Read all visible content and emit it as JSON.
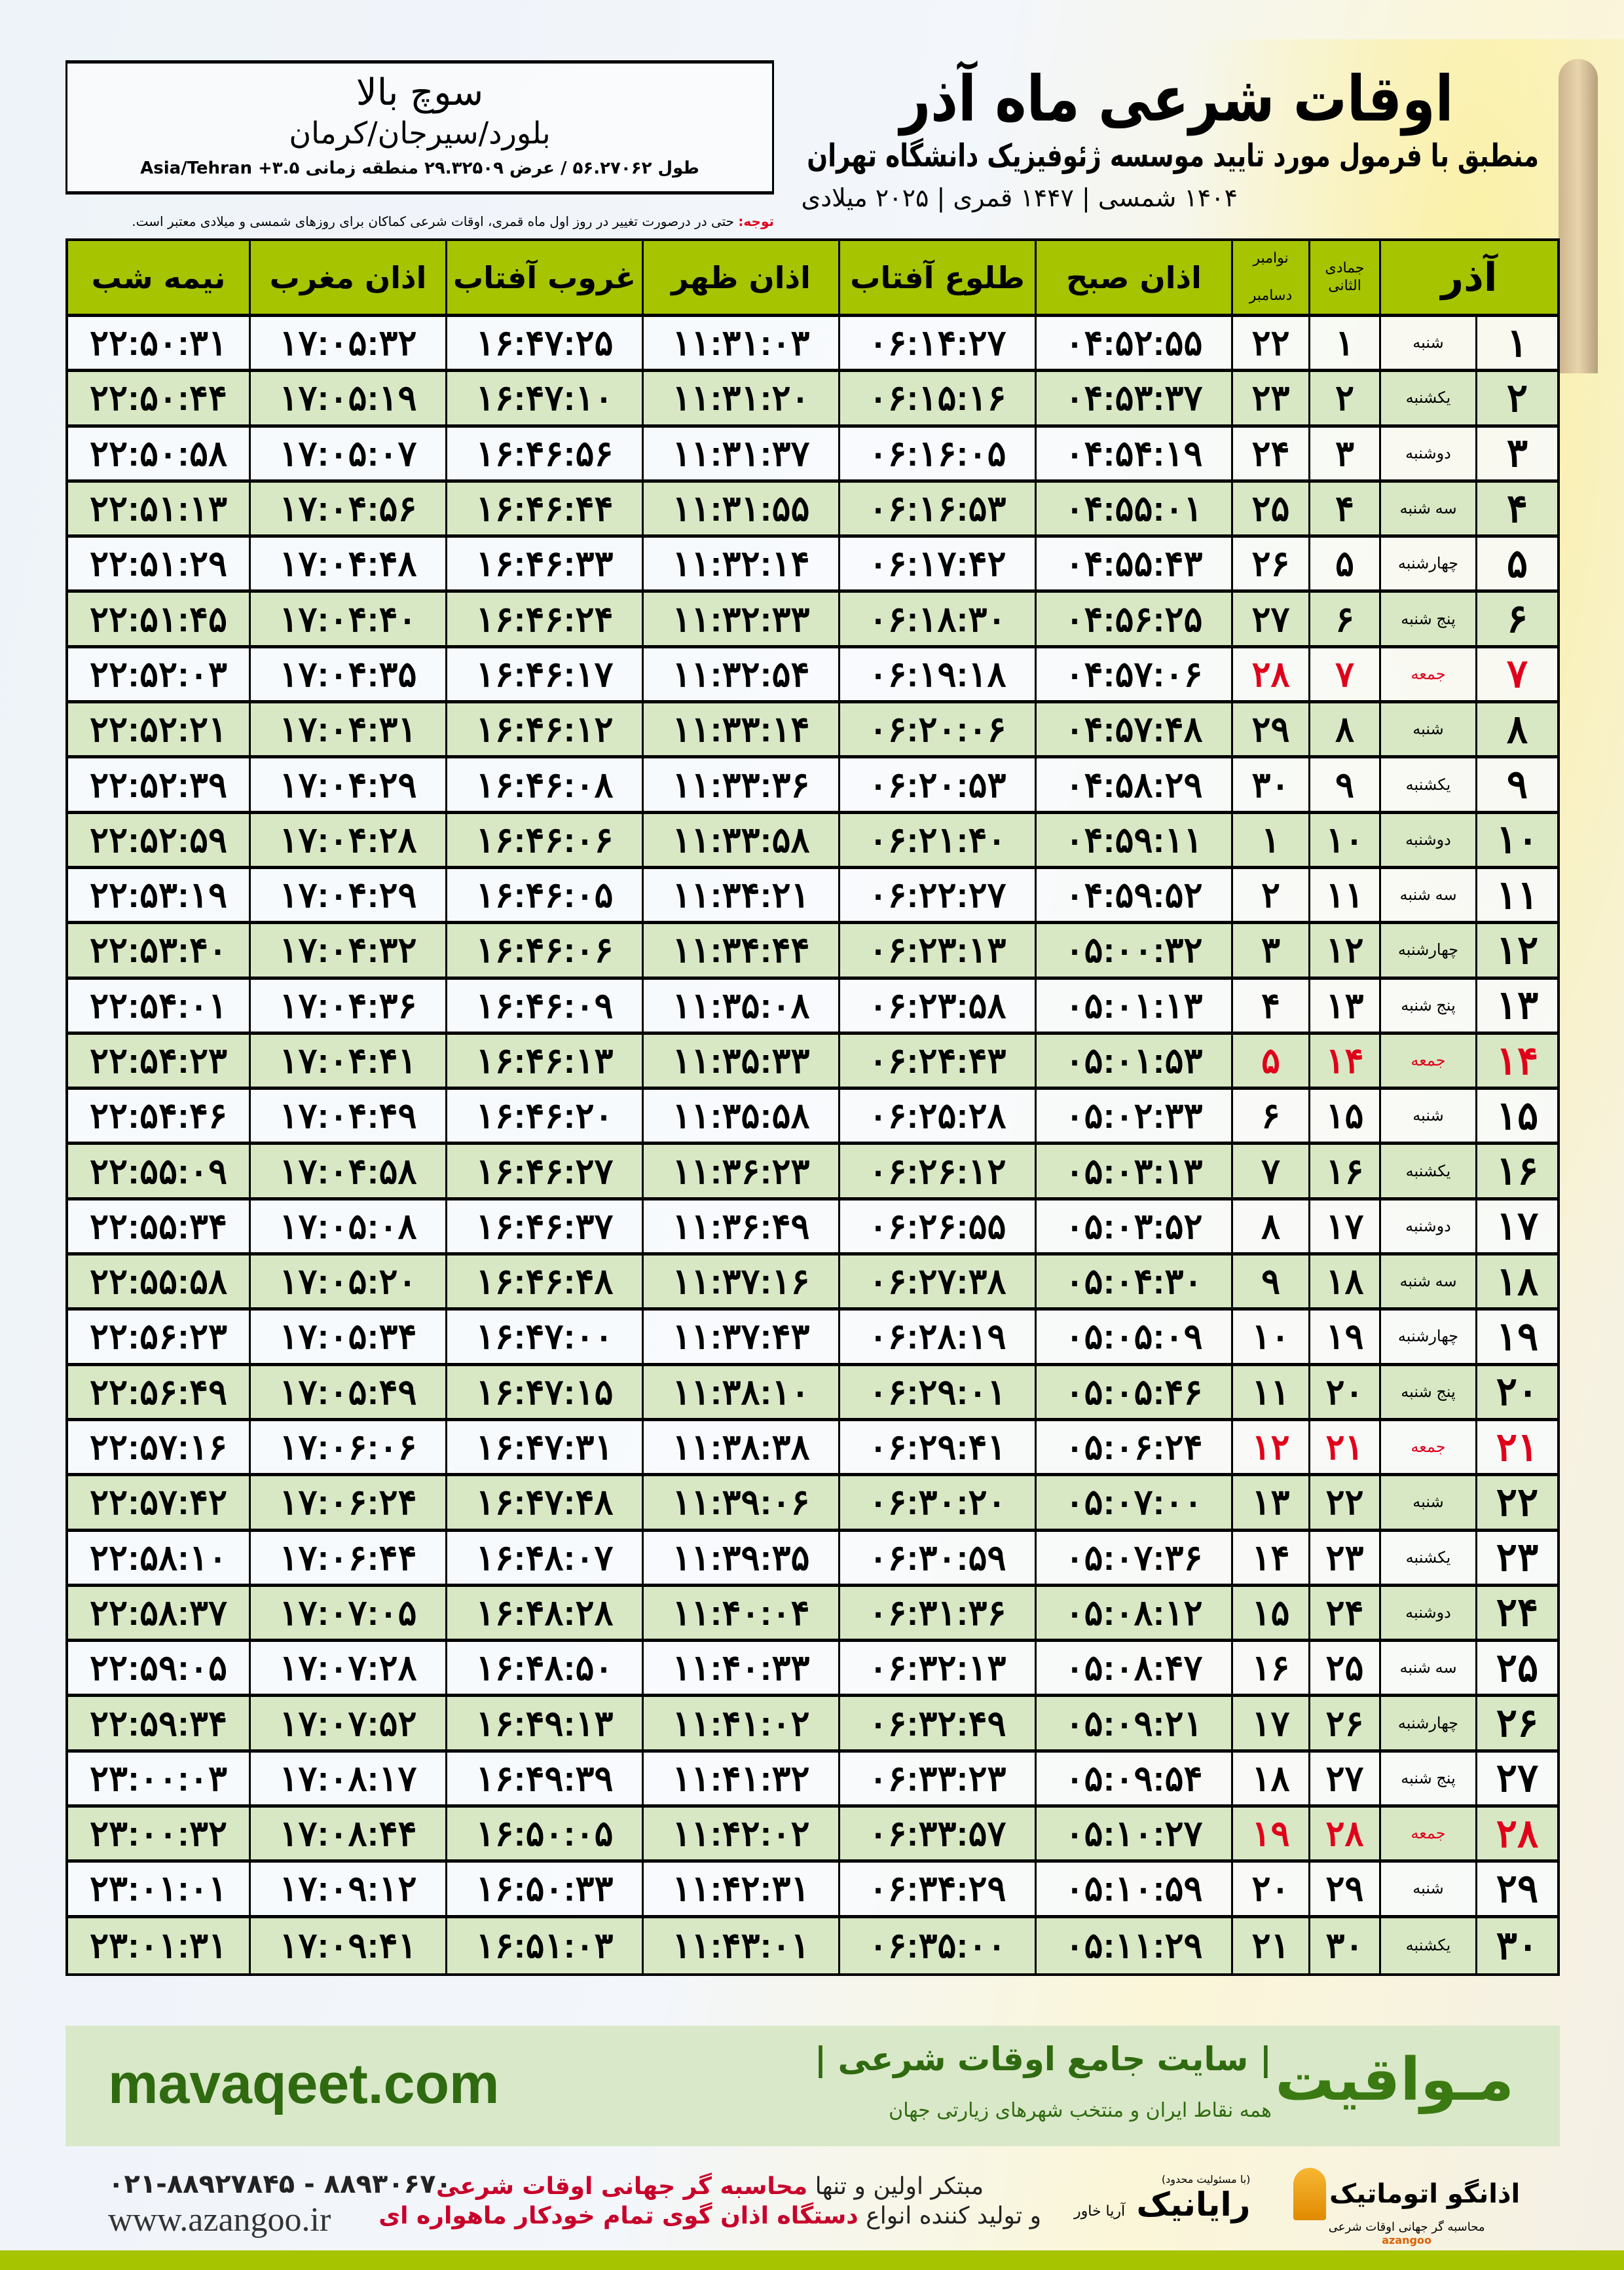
{
  "header": {
    "title": "اوقات شرعی ماه آذر",
    "subtitle": "منطبق با فرمول مورد تایید موسسه ژئوفیزیک دانشگاه تهران",
    "years": "۱۴۰۴ شمسی | ۱۴۴۷ قمری | ۲۰۲۵ میلادی"
  },
  "location": {
    "city": "سوچ بالا",
    "region": "بلورد/سیرجان/کرمان",
    "coords": "طول ۵۶.۲۷۰۶۲ / عرض ۲۹.۳۲۵۰۹ منطقه زمانی ۳.۵+ Asia/Tehran"
  },
  "note": {
    "label": "توجه:",
    "text": " حتی در درصورت تغییر در روز اول ماه قمری، اوقات شرعی کماکان برای روزهای شمسی و میلادی معتبر است."
  },
  "table": {
    "headers": {
      "day": "آذر",
      "hijri": "جمادی الثانی",
      "greg_top": "نوامبر",
      "greg_bottom": "دسامبر",
      "fajr": "اذان صبح",
      "sunrise": "طلوع آفتاب",
      "dhuhr": "اذان ظهر",
      "sunset": "غروب آفتاب",
      "maghrib": "اذان مغرب",
      "midnight": "نیمه شب"
    },
    "holiday_color": "#e0001a",
    "header_color": "#a6c400",
    "alt_row_color": "#d9e8c4",
    "rows": [
      [
        "۱",
        "شنبه",
        "۱",
        "۲۲",
        "۰۴:۵۲:۵۵",
        "۰۶:۱۴:۲۷",
        "۱۱:۳۱:۰۳",
        "۱۶:۴۷:۲۵",
        "۱۷:۰۵:۳۲",
        "۲۲:۵۰:۳۱",
        false
      ],
      [
        "۲",
        "یکشنبه",
        "۲",
        "۲۳",
        "۰۴:۵۳:۳۷",
        "۰۶:۱۵:۱۶",
        "۱۱:۳۱:۲۰",
        "۱۶:۴۷:۱۰",
        "۱۷:۰۵:۱۹",
        "۲۲:۵۰:۴۴",
        false
      ],
      [
        "۳",
        "دوشنبه",
        "۳",
        "۲۴",
        "۰۴:۵۴:۱۹",
        "۰۶:۱۶:۰۵",
        "۱۱:۳۱:۳۷",
        "۱۶:۴۶:۵۶",
        "۱۷:۰۵:۰۷",
        "۲۲:۵۰:۵۸",
        false
      ],
      [
        "۴",
        "سه شنبه",
        "۴",
        "۲۵",
        "۰۴:۵۵:۰۱",
        "۰۶:۱۶:۵۳",
        "۱۱:۳۱:۵۵",
        "۱۶:۴۶:۴۴",
        "۱۷:۰۴:۵۶",
        "۲۲:۵۱:۱۳",
        false
      ],
      [
        "۵",
        "چهارشنبه",
        "۵",
        "۲۶",
        "۰۴:۵۵:۴۳",
        "۰۶:۱۷:۴۲",
        "۱۱:۳۲:۱۴",
        "۱۶:۴۶:۳۳",
        "۱۷:۰۴:۴۸",
        "۲۲:۵۱:۲۹",
        false
      ],
      [
        "۶",
        "پنج شنبه",
        "۶",
        "۲۷",
        "۰۴:۵۶:۲۵",
        "۰۶:۱۸:۳۰",
        "۱۱:۳۲:۳۳",
        "۱۶:۴۶:۲۴",
        "۱۷:۰۴:۴۰",
        "۲۲:۵۱:۴۵",
        false
      ],
      [
        "۷",
        "جمعه",
        "۷",
        "۲۸",
        "۰۴:۵۷:۰۶",
        "۰۶:۱۹:۱۸",
        "۱۱:۳۲:۵۴",
        "۱۶:۴۶:۱۷",
        "۱۷:۰۴:۳۵",
        "۲۲:۵۲:۰۳",
        true
      ],
      [
        "۸",
        "شنبه",
        "۸",
        "۲۹",
        "۰۴:۵۷:۴۸",
        "۰۶:۲۰:۰۶",
        "۱۱:۳۳:۱۴",
        "۱۶:۴۶:۱۲",
        "۱۷:۰۴:۳۱",
        "۲۲:۵۲:۲۱",
        false
      ],
      [
        "۹",
        "یکشنبه",
        "۹",
        "۳۰",
        "۰۴:۵۸:۲۹",
        "۰۶:۲۰:۵۳",
        "۱۱:۳۳:۳۶",
        "۱۶:۴۶:۰۸",
        "۱۷:۰۴:۲۹",
        "۲۲:۵۲:۳۹",
        false
      ],
      [
        "۱۰",
        "دوشنبه",
        "۱۰",
        "۱",
        "۰۴:۵۹:۱۱",
        "۰۶:۲۱:۴۰",
        "۱۱:۳۳:۵۸",
        "۱۶:۴۶:۰۶",
        "۱۷:۰۴:۲۸",
        "۲۲:۵۲:۵۹",
        false
      ],
      [
        "۱۱",
        "سه شنبه",
        "۱۱",
        "۲",
        "۰۴:۵۹:۵۲",
        "۰۶:۲۲:۲۷",
        "۱۱:۳۴:۲۱",
        "۱۶:۴۶:۰۵",
        "۱۷:۰۴:۲۹",
        "۲۲:۵۳:۱۹",
        false
      ],
      [
        "۱۲",
        "چهارشنبه",
        "۱۲",
        "۳",
        "۰۵:۰۰:۳۲",
        "۰۶:۲۳:۱۳",
        "۱۱:۳۴:۴۴",
        "۱۶:۴۶:۰۶",
        "۱۷:۰۴:۳۲",
        "۲۲:۵۳:۴۰",
        false
      ],
      [
        "۱۳",
        "پنج شنبه",
        "۱۳",
        "۴",
        "۰۵:۰۱:۱۳",
        "۰۶:۲۳:۵۸",
        "۱۱:۳۵:۰۸",
        "۱۶:۴۶:۰۹",
        "۱۷:۰۴:۳۶",
        "۲۲:۵۴:۰۱",
        false
      ],
      [
        "۱۴",
        "جمعه",
        "۱۴",
        "۵",
        "۰۵:۰۱:۵۳",
        "۰۶:۲۴:۴۳",
        "۱۱:۳۵:۳۳",
        "۱۶:۴۶:۱۳",
        "۱۷:۰۴:۴۱",
        "۲۲:۵۴:۲۳",
        true
      ],
      [
        "۱۵",
        "شنبه",
        "۱۵",
        "۶",
        "۰۵:۰۲:۳۳",
        "۰۶:۲۵:۲۸",
        "۱۱:۳۵:۵۸",
        "۱۶:۴۶:۲۰",
        "۱۷:۰۴:۴۹",
        "۲۲:۵۴:۴۶",
        false
      ],
      [
        "۱۶",
        "یکشنبه",
        "۱۶",
        "۷",
        "۰۵:۰۳:۱۳",
        "۰۶:۲۶:۱۲",
        "۱۱:۳۶:۲۳",
        "۱۶:۴۶:۲۷",
        "۱۷:۰۴:۵۸",
        "۲۲:۵۵:۰۹",
        false
      ],
      [
        "۱۷",
        "دوشنبه",
        "۱۷",
        "۸",
        "۰۵:۰۳:۵۲",
        "۰۶:۲۶:۵۵",
        "۱۱:۳۶:۴۹",
        "۱۶:۴۶:۳۷",
        "۱۷:۰۵:۰۸",
        "۲۲:۵۵:۳۴",
        false
      ],
      [
        "۱۸",
        "سه شنبه",
        "۱۸",
        "۹",
        "۰۵:۰۴:۳۰",
        "۰۶:۲۷:۳۸",
        "۱۱:۳۷:۱۶",
        "۱۶:۴۶:۴۸",
        "۱۷:۰۵:۲۰",
        "۲۲:۵۵:۵۸",
        false
      ],
      [
        "۱۹",
        "چهارشنبه",
        "۱۹",
        "۱۰",
        "۰۵:۰۵:۰۹",
        "۰۶:۲۸:۱۹",
        "۱۱:۳۷:۴۳",
        "۱۶:۴۷:۰۰",
        "۱۷:۰۵:۳۴",
        "۲۲:۵۶:۲۳",
        false
      ],
      [
        "۲۰",
        "پنج شنبه",
        "۲۰",
        "۱۱",
        "۰۵:۰۵:۴۶",
        "۰۶:۲۹:۰۱",
        "۱۱:۳۸:۱۰",
        "۱۶:۴۷:۱۵",
        "۱۷:۰۵:۴۹",
        "۲۲:۵۶:۴۹",
        false
      ],
      [
        "۲۱",
        "جمعه",
        "۲۱",
        "۱۲",
        "۰۵:۰۶:۲۴",
        "۰۶:۲۹:۴۱",
        "۱۱:۳۸:۳۸",
        "۱۶:۴۷:۳۱",
        "۱۷:۰۶:۰۶",
        "۲۲:۵۷:۱۶",
        true
      ],
      [
        "۲۲",
        "شنبه",
        "۲۲",
        "۱۳",
        "۰۵:۰۷:۰۰",
        "۰۶:۳۰:۲۰",
        "۱۱:۳۹:۰۶",
        "۱۶:۴۷:۴۸",
        "۱۷:۰۶:۲۴",
        "۲۲:۵۷:۴۲",
        false
      ],
      [
        "۲۳",
        "یکشنبه",
        "۲۳",
        "۱۴",
        "۰۵:۰۷:۳۶",
        "۰۶:۳۰:۵۹",
        "۱۱:۳۹:۳۵",
        "۱۶:۴۸:۰۷",
        "۱۷:۰۶:۴۴",
        "۲۲:۵۸:۱۰",
        false
      ],
      [
        "۲۴",
        "دوشنبه",
        "۲۴",
        "۱۵",
        "۰۵:۰۸:۱۲",
        "۰۶:۳۱:۳۶",
        "۱۱:۴۰:۰۴",
        "۱۶:۴۸:۲۸",
        "۱۷:۰۷:۰۵",
        "۲۲:۵۸:۳۷",
        false
      ],
      [
        "۲۵",
        "سه شنبه",
        "۲۵",
        "۱۶",
        "۰۵:۰۸:۴۷",
        "۰۶:۳۲:۱۳",
        "۱۱:۴۰:۳۳",
        "۱۶:۴۸:۵۰",
        "۱۷:۰۷:۲۸",
        "۲۲:۵۹:۰۵",
        false
      ],
      [
        "۲۶",
        "چهارشنبه",
        "۲۶",
        "۱۷",
        "۰۵:۰۹:۲۱",
        "۰۶:۳۲:۴۹",
        "۱۱:۴۱:۰۲",
        "۱۶:۴۹:۱۳",
        "۱۷:۰۷:۵۲",
        "۲۲:۵۹:۳۴",
        false
      ],
      [
        "۲۷",
        "پنج شنبه",
        "۲۷",
        "۱۸",
        "۰۵:۰۹:۵۴",
        "۰۶:۳۳:۲۳",
        "۱۱:۴۱:۳۲",
        "۱۶:۴۹:۳۹",
        "۱۷:۰۸:۱۷",
        "۲۳:۰۰:۰۳",
        false
      ],
      [
        "۲۸",
        "جمعه",
        "۲۸",
        "۱۹",
        "۰۵:۱۰:۲۷",
        "۰۶:۳۳:۵۷",
        "۱۱:۴۲:۰۲",
        "۱۶:۵۰:۰۵",
        "۱۷:۰۸:۴۴",
        "۲۳:۰۰:۳۲",
        true
      ],
      [
        "۲۹",
        "شنبه",
        "۲۹",
        "۲۰",
        "۰۵:۱۰:۵۹",
        "۰۶:۳۴:۲۹",
        "۱۱:۴۲:۳۱",
        "۱۶:۵۰:۳۳",
        "۱۷:۰۹:۱۲",
        "۲۳:۰۱:۰۱",
        false
      ],
      [
        "۳۰",
        "یکشنبه",
        "۳۰",
        "۲۱",
        "۰۵:۱۱:۲۹",
        "۰۶:۳۵:۰۰",
        "۱۱:۴۳:۰۱",
        "۱۶:۵۱:۰۳",
        "۱۷:۰۹:۴۱",
        "۲۳:۰۱:۳۱",
        false
      ]
    ]
  },
  "banner": {
    "brand": "مـواقیت",
    "slogan": "| سایت جامع اوقات شرعی |",
    "slogan2": "همه نقاط ایران و منتخب شهرهای زیارتی جهان",
    "site": "mavaqeet.com",
    "color": "#2f6a10"
  },
  "footer": {
    "phone": "۰۲۱-۸۸۹۲۷۸۴۵ - ۸۸۹۳۰۶۷۰",
    "web": "www.azangoo.ir",
    "ad_line1_a": "مبتکر اولین و تنها ",
    "ad_line1_b": "محاسبه گر جهانی اوقات شرعی",
    "ad_line2_a": "و تولید کننده انواع ",
    "ad_line2_b": "دستگاه اذان گوی تمام خودکار ماهواره ای",
    "rayanik_tag": "(با مسئولیت محدود)",
    "rayanik": "رایانیک",
    "rayanik_sub": "آریا خاور",
    "azangoo": "اذانگو اتوماتیک",
    "azangoo_sub": "محاسبه گر جهانی اوقات شرعی",
    "azangoo_latin": "azangoo"
  }
}
